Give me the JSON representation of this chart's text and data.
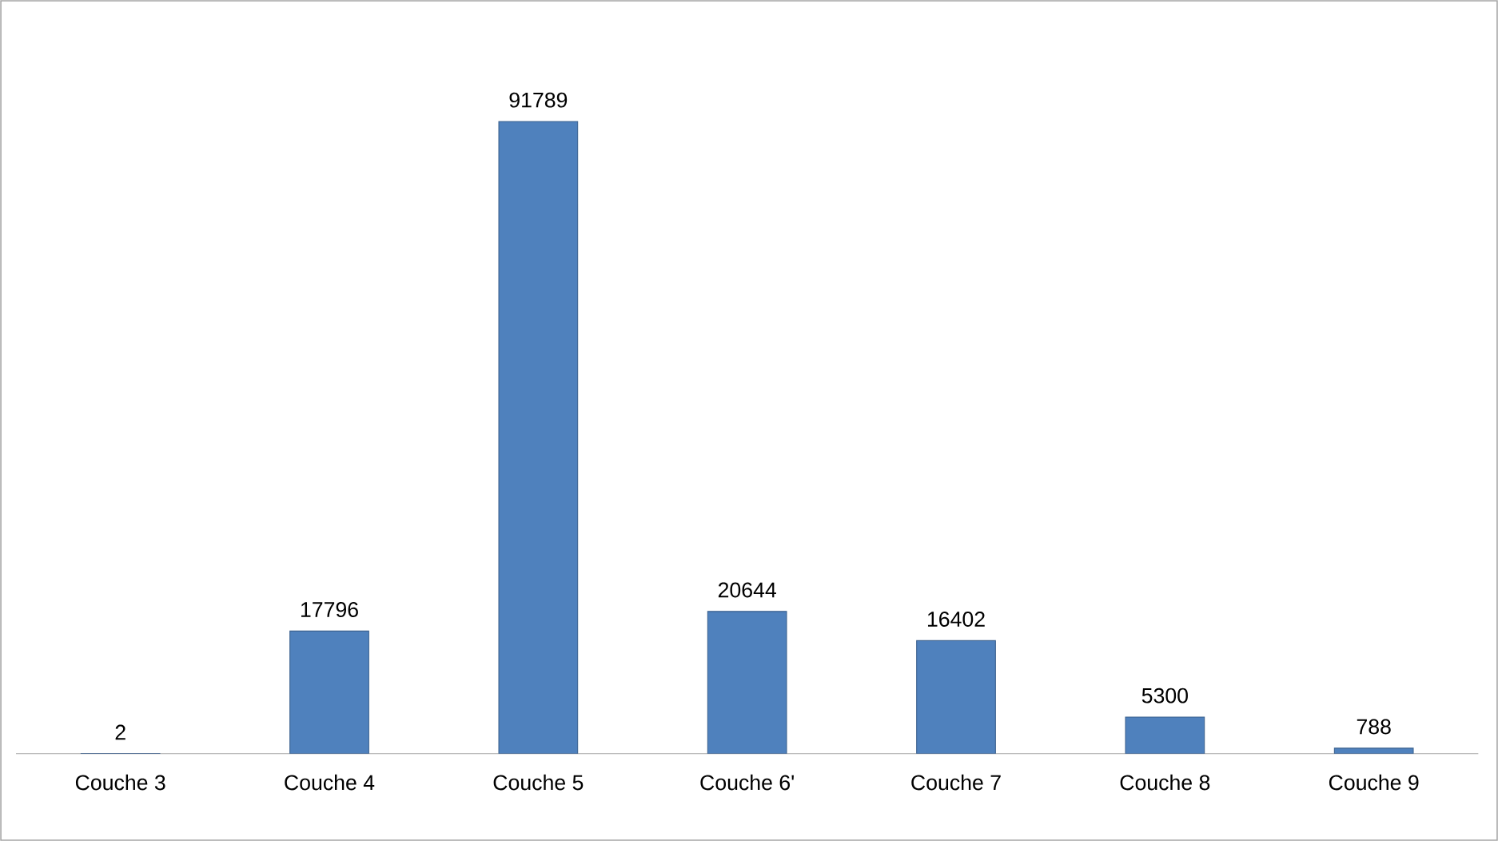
{
  "chart_data": {
    "type": "bar",
    "categories": [
      "Couche 3",
      "Couche 4",
      "Couche 5",
      "Couche 6'",
      "Couche 7",
      "Couche 8",
      "Couche 9"
    ],
    "values": [
      2,
      17796,
      91789,
      20644,
      16402,
      5300,
      788
    ],
    "color": "#4f81bd",
    "data_labels": true
  }
}
